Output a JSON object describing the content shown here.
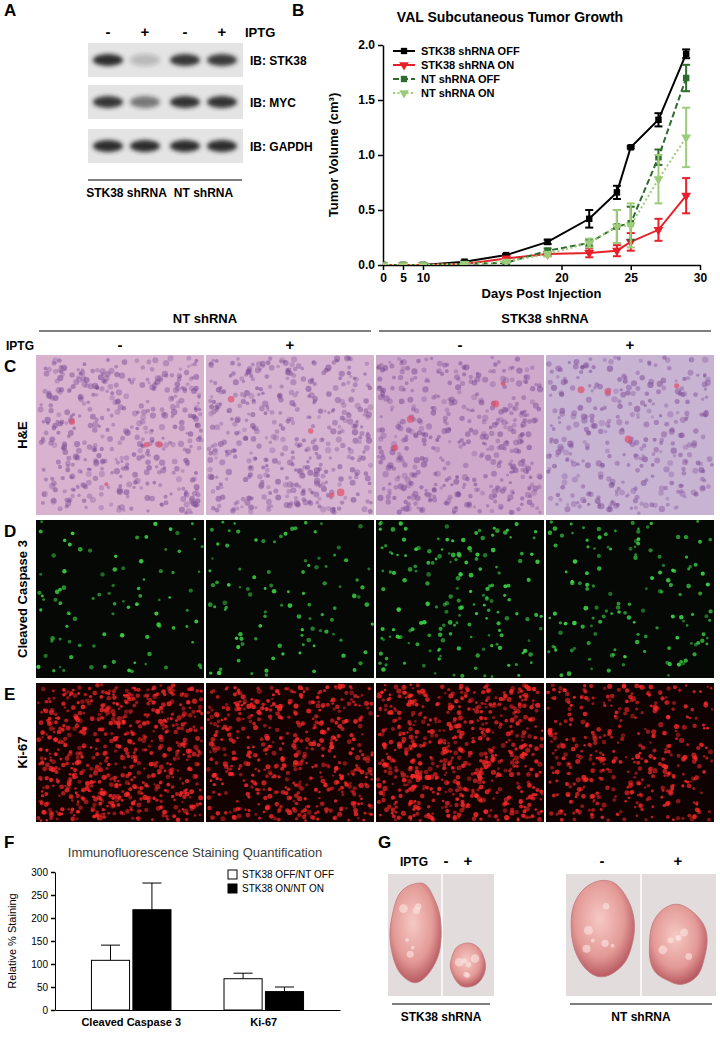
{
  "figure": {
    "panel_labels": [
      "A",
      "B",
      "C",
      "D",
      "E",
      "F",
      "G"
    ],
    "blot": {
      "treatment_label": "IPTG",
      "lanes": [
        "-",
        "+",
        "-",
        "+"
      ],
      "rows": [
        "IB: STK38",
        "IB: MYC",
        "IB: GAPDH"
      ],
      "groups": [
        "STK38 shRNA",
        "NT shRNA"
      ]
    },
    "micrographs": {
      "groups": [
        "NT shRNA",
        "STK38 shRNA"
      ],
      "treatment_label": "IPTG",
      "lanes": [
        "-",
        "+",
        "-",
        "+"
      ],
      "rows": [
        "H&E",
        "Cleaved Caspase 3",
        "Ki-67"
      ]
    },
    "photos": {
      "treatment_label": "IPTG",
      "lanes": [
        "-",
        "+",
        "-",
        "+"
      ],
      "groups": [
        "STK38 shRNA",
        "NT shRNA"
      ]
    }
  },
  "chart_data": [
    {
      "type": "line",
      "title": "VAL Subcutaneous Tumor Growth",
      "x_label": "Days Post Injection",
      "y_label": "Tumor Volume (cm³)",
      "x": [
        0,
        5,
        10,
        13,
        16,
        19,
        22,
        24,
        25,
        27,
        29
      ],
      "xlim": [
        0,
        30
      ],
      "xticks": [
        0,
        5,
        10,
        20,
        25,
        30
      ],
      "ylim": [
        0,
        2
      ],
      "yticks": [
        {
          "value": 0,
          "label": "0.0"
        },
        {
          "value": 0.5,
          "label": "0.5"
        },
        {
          "value": 1,
          "label": "1.0"
        },
        {
          "value": 1.5,
          "label": "1.5"
        },
        {
          "value": 2,
          "label": "2.0"
        }
      ],
      "grid": false,
      "legend": "top-left",
      "series": [
        {
          "name": "STK38 shRNA OFF",
          "color": "#000000",
          "marker": "square",
          "line_style": "solid",
          "values": [
            0,
            0,
            0,
            0.03,
            0.09,
            0.21,
            0.42,
            0.66,
            1.07,
            1.32,
            1.92
          ],
          "errors": [
            0,
            0,
            0,
            0.01,
            0.01,
            0.02,
            0.08,
            0.06,
            0.01,
            0.06,
            0.04
          ]
        },
        {
          "name": "STK38 shRNA ON",
          "color": "#e8202a",
          "marker": "triangle-down",
          "line_style": "solid",
          "values": [
            0,
            0,
            0,
            0.01,
            0.06,
            0.1,
            0.11,
            0.13,
            0.21,
            0.32,
            0.63
          ],
          "errors": [
            0,
            0,
            0,
            0.01,
            0.01,
            0.02,
            0.04,
            0.05,
            0.08,
            0.1,
            0.16
          ]
        },
        {
          "name": "NT shRNA OFF",
          "color": "#2e6b2e",
          "marker": "square",
          "line_style": "dashed",
          "values": [
            0,
            0,
            0,
            0.01,
            0.02,
            0.13,
            0.2,
            0.35,
            0.38,
            0.98,
            1.7
          ],
          "errors": [
            0,
            0,
            0,
            0.01,
            0.01,
            0.02,
            0.03,
            0.15,
            0.15,
            0.07,
            0.12
          ]
        },
        {
          "name": "NT shRNA ON",
          "color": "#9ccc7a",
          "marker": "triangle-down",
          "line_style": "dotted",
          "values": [
            0,
            0,
            0,
            0.01,
            0.03,
            0.1,
            0.2,
            0.35,
            0.36,
            0.78,
            1.16
          ],
          "errors": [
            0,
            0,
            0,
            0.01,
            0.01,
            0.02,
            0.04,
            0.15,
            0.2,
            0.22,
            0.27
          ]
        }
      ]
    },
    {
      "type": "bar",
      "title": "Immunofluorescence Staining Quantification",
      "y_label": "Relative % Staining",
      "categories": [
        "Cleaved Caspase 3",
        "Ki-67"
      ],
      "ylim": [
        0,
        300
      ],
      "yticks": [
        0,
        50,
        100,
        150,
        200,
        250,
        300
      ],
      "grid": false,
      "legend": "top-right",
      "series": [
        {
          "name": "STK38 OFF/NT OFF",
          "color": "#ffffff",
          "values": [
            108,
            68
          ],
          "errors": [
            33,
            12
          ]
        },
        {
          "name": "STK38 ON/NT ON",
          "color": "#000000",
          "values": [
            218,
            40
          ],
          "errors": [
            58,
            10
          ]
        }
      ]
    }
  ]
}
